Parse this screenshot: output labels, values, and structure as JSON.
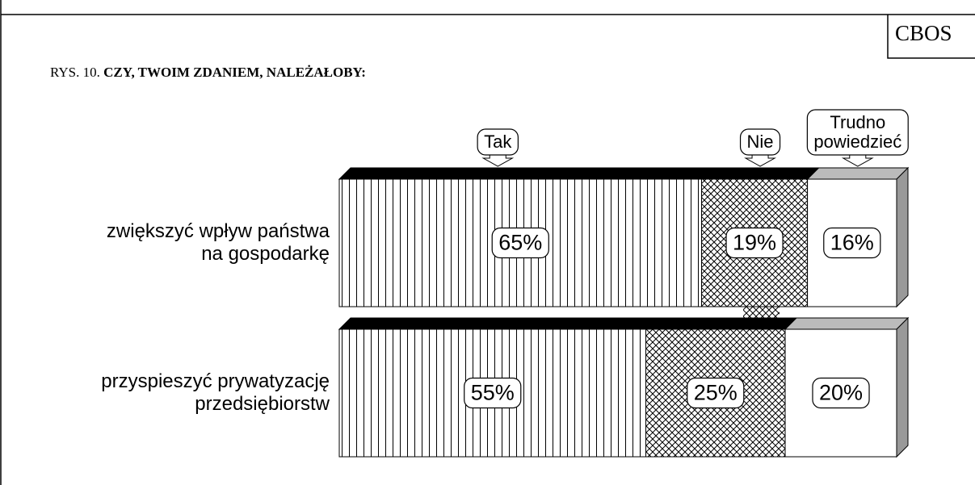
{
  "chart_data": {
    "type": "stacked-bar",
    "source": "CBOS",
    "figure_label": "RYS. 10.",
    "title": "CZY, TWOIM ZDANIEM, NALEŻAŁOBY:",
    "categories": [
      "zwiększyć wpływ państwa\nna gospodarkę",
      "przyspieszyć prywatyzację\nprzedsiębiorstw"
    ],
    "series": [
      {
        "name": "Tak",
        "color": "#000000",
        "pattern": "vertical-lines",
        "values": [
          65,
          55
        ],
        "value_labels": [
          "65%",
          "55%"
        ]
      },
      {
        "name": "Nie",
        "color": "#000000",
        "pattern": "crosshatch",
        "values": [
          19,
          25
        ],
        "value_labels": [
          "19%",
          "25%"
        ]
      },
      {
        "name": "Trudno\npowiedzieć",
        "color": "#bbbbbb",
        "pattern": "none",
        "values": [
          16,
          20
        ],
        "value_labels": [
          "16%",
          "20%"
        ]
      }
    ],
    "xlim": [
      0,
      100
    ]
  }
}
